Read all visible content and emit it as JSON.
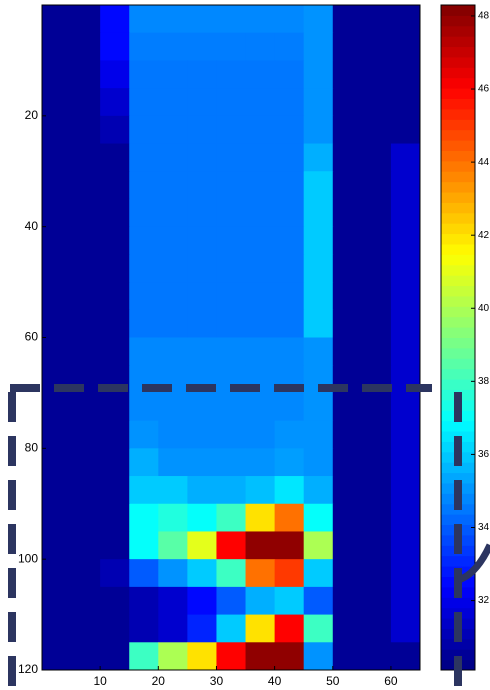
{
  "chart_data": {
    "type": "heatmap",
    "colormap": "jet",
    "x": [
      2.5,
      7.5,
      12.5,
      17.5,
      22.5,
      27.5,
      32.5,
      37.5,
      42.5,
      47.5,
      52.5,
      57.5,
      62.5
    ],
    "y": [
      2.5,
      7.5,
      12.5,
      17.5,
      22.5,
      27.5,
      32.5,
      37.5,
      42.5,
      47.5,
      52.5,
      57.5,
      62.5,
      67.5,
      72.5,
      77.5,
      82.5,
      87.5,
      92.5,
      97.5,
      102.5,
      107.5,
      112.5,
      117.5
    ],
    "values": [
      [
        30.5,
        30.5,
        32.5,
        34.8,
        34.8,
        34.8,
        34.8,
        34.8,
        34.8,
        35,
        30.5,
        30.5,
        30.5
      ],
      [
        30.5,
        30.5,
        32.5,
        34.6,
        34.6,
        34.6,
        34.6,
        34.6,
        34.6,
        35,
        30.5,
        30.5,
        30.5
      ],
      [
        30.5,
        30.5,
        32,
        34.5,
        34.5,
        34.5,
        34.5,
        34.5,
        34.5,
        35,
        30.5,
        30.5,
        30.5
      ],
      [
        30.5,
        30.5,
        31.5,
        34.5,
        34.5,
        34.5,
        34.5,
        34.5,
        34.5,
        35,
        30.5,
        30.5,
        30.5
      ],
      [
        30.5,
        30.5,
        31,
        34.5,
        34.5,
        34.5,
        34.5,
        34.5,
        34.5,
        35,
        30.5,
        30.5,
        30.5
      ],
      [
        30.5,
        30.5,
        30.5,
        34.5,
        34.5,
        34.5,
        34.5,
        34.5,
        34.5,
        35.5,
        30.5,
        30.5,
        31.5
      ],
      [
        30.5,
        30.5,
        30.5,
        34.5,
        34.5,
        34.5,
        34.5,
        34.5,
        34.5,
        36,
        30.5,
        30.5,
        31.5
      ],
      [
        30.5,
        30.5,
        30.5,
        34.5,
        34.5,
        34.5,
        34.5,
        34.5,
        34.5,
        36,
        30.5,
        30.5,
        31.5
      ],
      [
        30.5,
        30.5,
        30.5,
        34.5,
        34.5,
        34.5,
        34.5,
        34.5,
        34.5,
        36,
        30.5,
        30.5,
        31.5
      ],
      [
        30.5,
        30.5,
        30.5,
        34.5,
        34.5,
        34.5,
        34.5,
        34.5,
        34.5,
        36,
        30.5,
        30.5,
        31.5
      ],
      [
        30.5,
        30.5,
        30.5,
        34.5,
        34.5,
        34.5,
        34.5,
        34.5,
        34.5,
        36,
        30.5,
        30.5,
        31.5
      ],
      [
        30.5,
        30.5,
        30.5,
        34.5,
        34.5,
        34.5,
        34.5,
        34.5,
        34.5,
        36,
        30.5,
        30.5,
        31.5
      ],
      [
        30.5,
        30.5,
        30.5,
        34.8,
        34.8,
        34.8,
        34.8,
        34.8,
        34.8,
        35,
        30.5,
        30.5,
        31.5
      ],
      [
        30.5,
        30.5,
        30.5,
        34.8,
        34.8,
        34.8,
        34.8,
        34.8,
        34.8,
        35,
        30.5,
        30.5,
        31.5
      ],
      [
        30.5,
        30.5,
        30.5,
        34.8,
        34.8,
        34.8,
        34.8,
        34.8,
        34.8,
        35,
        30.5,
        30.5,
        31.5
      ],
      [
        30.5,
        30.5,
        30.5,
        35,
        34.8,
        34.8,
        34.8,
        34.8,
        35,
        35,
        30.5,
        30.5,
        31.5
      ],
      [
        30.5,
        30.5,
        30.5,
        35.5,
        35,
        35,
        35,
        35,
        35.2,
        35,
        30.5,
        30.5,
        31.5
      ],
      [
        30.5,
        30.5,
        30.5,
        36,
        36,
        35.5,
        35.5,
        35.8,
        36.5,
        35.5,
        30.5,
        30.5,
        31.5
      ],
      [
        30.5,
        30.5,
        30.5,
        37,
        37.5,
        37,
        38,
        42,
        44,
        37,
        30.5,
        30.5,
        31.5
      ],
      [
        30.5,
        30.5,
        30.5,
        37,
        38.5,
        41,
        46,
        48,
        48,
        40,
        30.5,
        30.5,
        31.5
      ],
      [
        30.5,
        30.5,
        31,
        34,
        35,
        36,
        38,
        44,
        45,
        36,
        30.5,
        30.5,
        31.5
      ],
      [
        30.5,
        30.5,
        30.5,
        31,
        31.5,
        32.5,
        34,
        35.5,
        36,
        34,
        30.5,
        30.5,
        31.5
      ],
      [
        30.5,
        30.5,
        30.5,
        31,
        31.5,
        33,
        36,
        42,
        46,
        38,
        30.5,
        30.5,
        31.5
      ],
      [
        30.5,
        30.5,
        30.5,
        38,
        40,
        42,
        46,
        48,
        48,
        35,
        30.5,
        30.5,
        30.5
      ]
    ],
    "xlim": [
      0,
      65
    ],
    "ylim": [
      0,
      120
    ],
    "xticks": [
      10,
      20,
      30,
      40,
      50,
      60
    ],
    "yticks": [
      20,
      40,
      60,
      80,
      100,
      120
    ],
    "clim": [
      30.1,
      48.3
    ],
    "cticks": [
      32,
      34,
      36,
      38,
      40,
      42,
      44,
      46,
      48
    ]
  }
}
